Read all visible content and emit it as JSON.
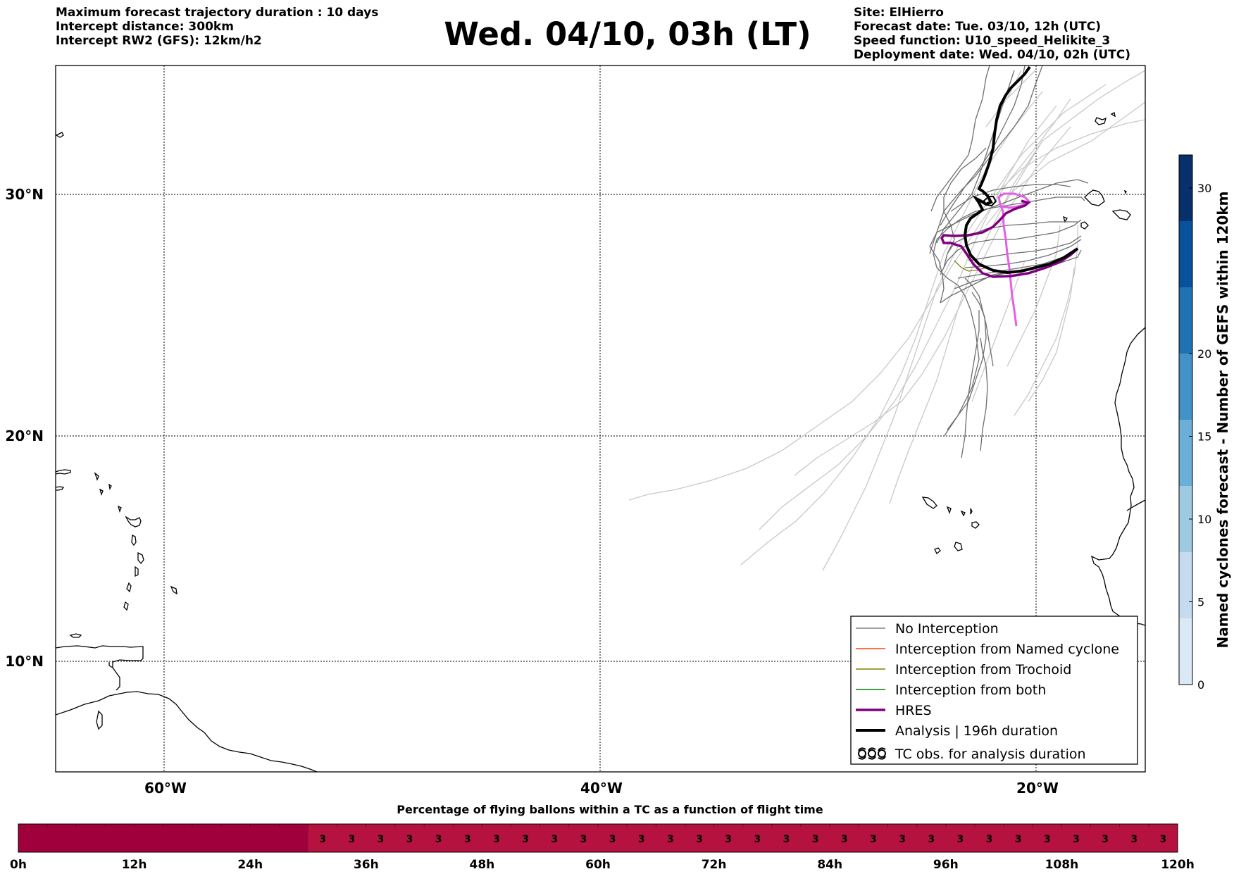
{
  "header": {
    "left_lines": [
      "Maximum forecast trajectory duration : 10 days",
      "Intercept distance: 300km",
      "Intercept RW2 (GFS):  12km/h2"
    ],
    "title": "Wed. 04/10, 03h (LT)",
    "right_lines": [
      "Site: ElHierro",
      "Forecast date: Tue. 03/10, 12h (UTC)",
      "Speed function: U10_speed_Helikite_3",
      "Deployment date: Wed. 04/10, 02h (UTC)"
    ]
  },
  "map": {
    "lat_labels": [
      "30°N",
      "20°N",
      "10°N"
    ],
    "lon_labels": [
      "60°W",
      "40°W",
      "20°W"
    ]
  },
  "legend": {
    "items": [
      {
        "label": "No Interception",
        "color": "#808080"
      },
      {
        "label": "Interception from Named cyclone",
        "color": "#ff4500"
      },
      {
        "label": "Interception from Trochoid",
        "color": "#808000"
      },
      {
        "label": "Interception from both",
        "color": "#008000"
      },
      {
        "label": "HRES",
        "color": "#800080"
      },
      {
        "label": "Analysis | 196h duration",
        "color": "#000000"
      },
      {
        "label": "TC obs. for analysis duration",
        "color": "#000000",
        "icon": "cyclone-symbols-icon"
      }
    ]
  },
  "colorbar": {
    "label": "Named cyclones forecast - Number of GEFS within 120km",
    "ticks": [
      "0",
      "5",
      "10",
      "15",
      "20",
      "30"
    ],
    "colors": [
      "#dbe9f6",
      "#c6dbef",
      "#9ecae1",
      "#6baed6",
      "#4292c6",
      "#2171b5",
      "#08519c",
      "#08306b"
    ]
  },
  "timeline": {
    "title": "Percentage of flying ballons within a TC as a function of flight time",
    "tick_labels": [
      "0h",
      "12h",
      "24h",
      "36h",
      "48h",
      "60h",
      "72h",
      "84h",
      "96h",
      "108h",
      "120h"
    ],
    "cell_values": [
      "",
      "",
      "",
      "",
      "",
      "",
      "",
      "",
      "",
      "",
      "3",
      "3",
      "3",
      "3",
      "3",
      "3",
      "3",
      "3",
      "3",
      "3",
      "3",
      "3",
      "3",
      "3",
      "3",
      "3",
      "3",
      "3",
      "3",
      "3",
      "3",
      "3",
      "3",
      "3",
      "3",
      "3",
      "3",
      "3",
      "3",
      "3"
    ],
    "colors": {
      "zero": "#a0003c",
      "value": "#b5123f"
    }
  }
}
